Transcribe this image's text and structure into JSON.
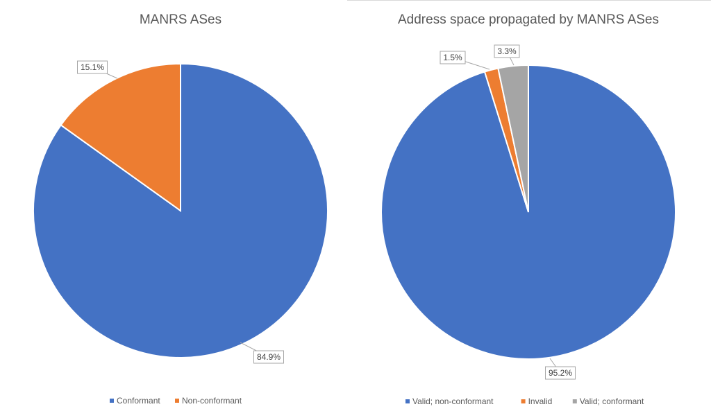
{
  "chart_data": [
    {
      "type": "pie",
      "title": "MANRS ASes",
      "categories": [
        "Conformant",
        "Non-conformant"
      ],
      "values": [
        84.9,
        15.1
      ],
      "labels": [
        "84.9%",
        "15.1%"
      ],
      "colors": [
        "#4472C4",
        "#ED7D31"
      ],
      "legend": "bottom"
    },
    {
      "type": "pie",
      "title": "Address space propagated by MANRS ASes",
      "categories": [
        "Valid; non-conformant",
        "Invalid",
        "Valid; conformant"
      ],
      "values": [
        95.2,
        1.5,
        3.3
      ],
      "labels": [
        "95.2%",
        "1.5%",
        "3.3%"
      ],
      "colors": [
        "#4472C4",
        "#ED7D31",
        "#A5A5A5"
      ],
      "legend": "bottom"
    }
  ]
}
